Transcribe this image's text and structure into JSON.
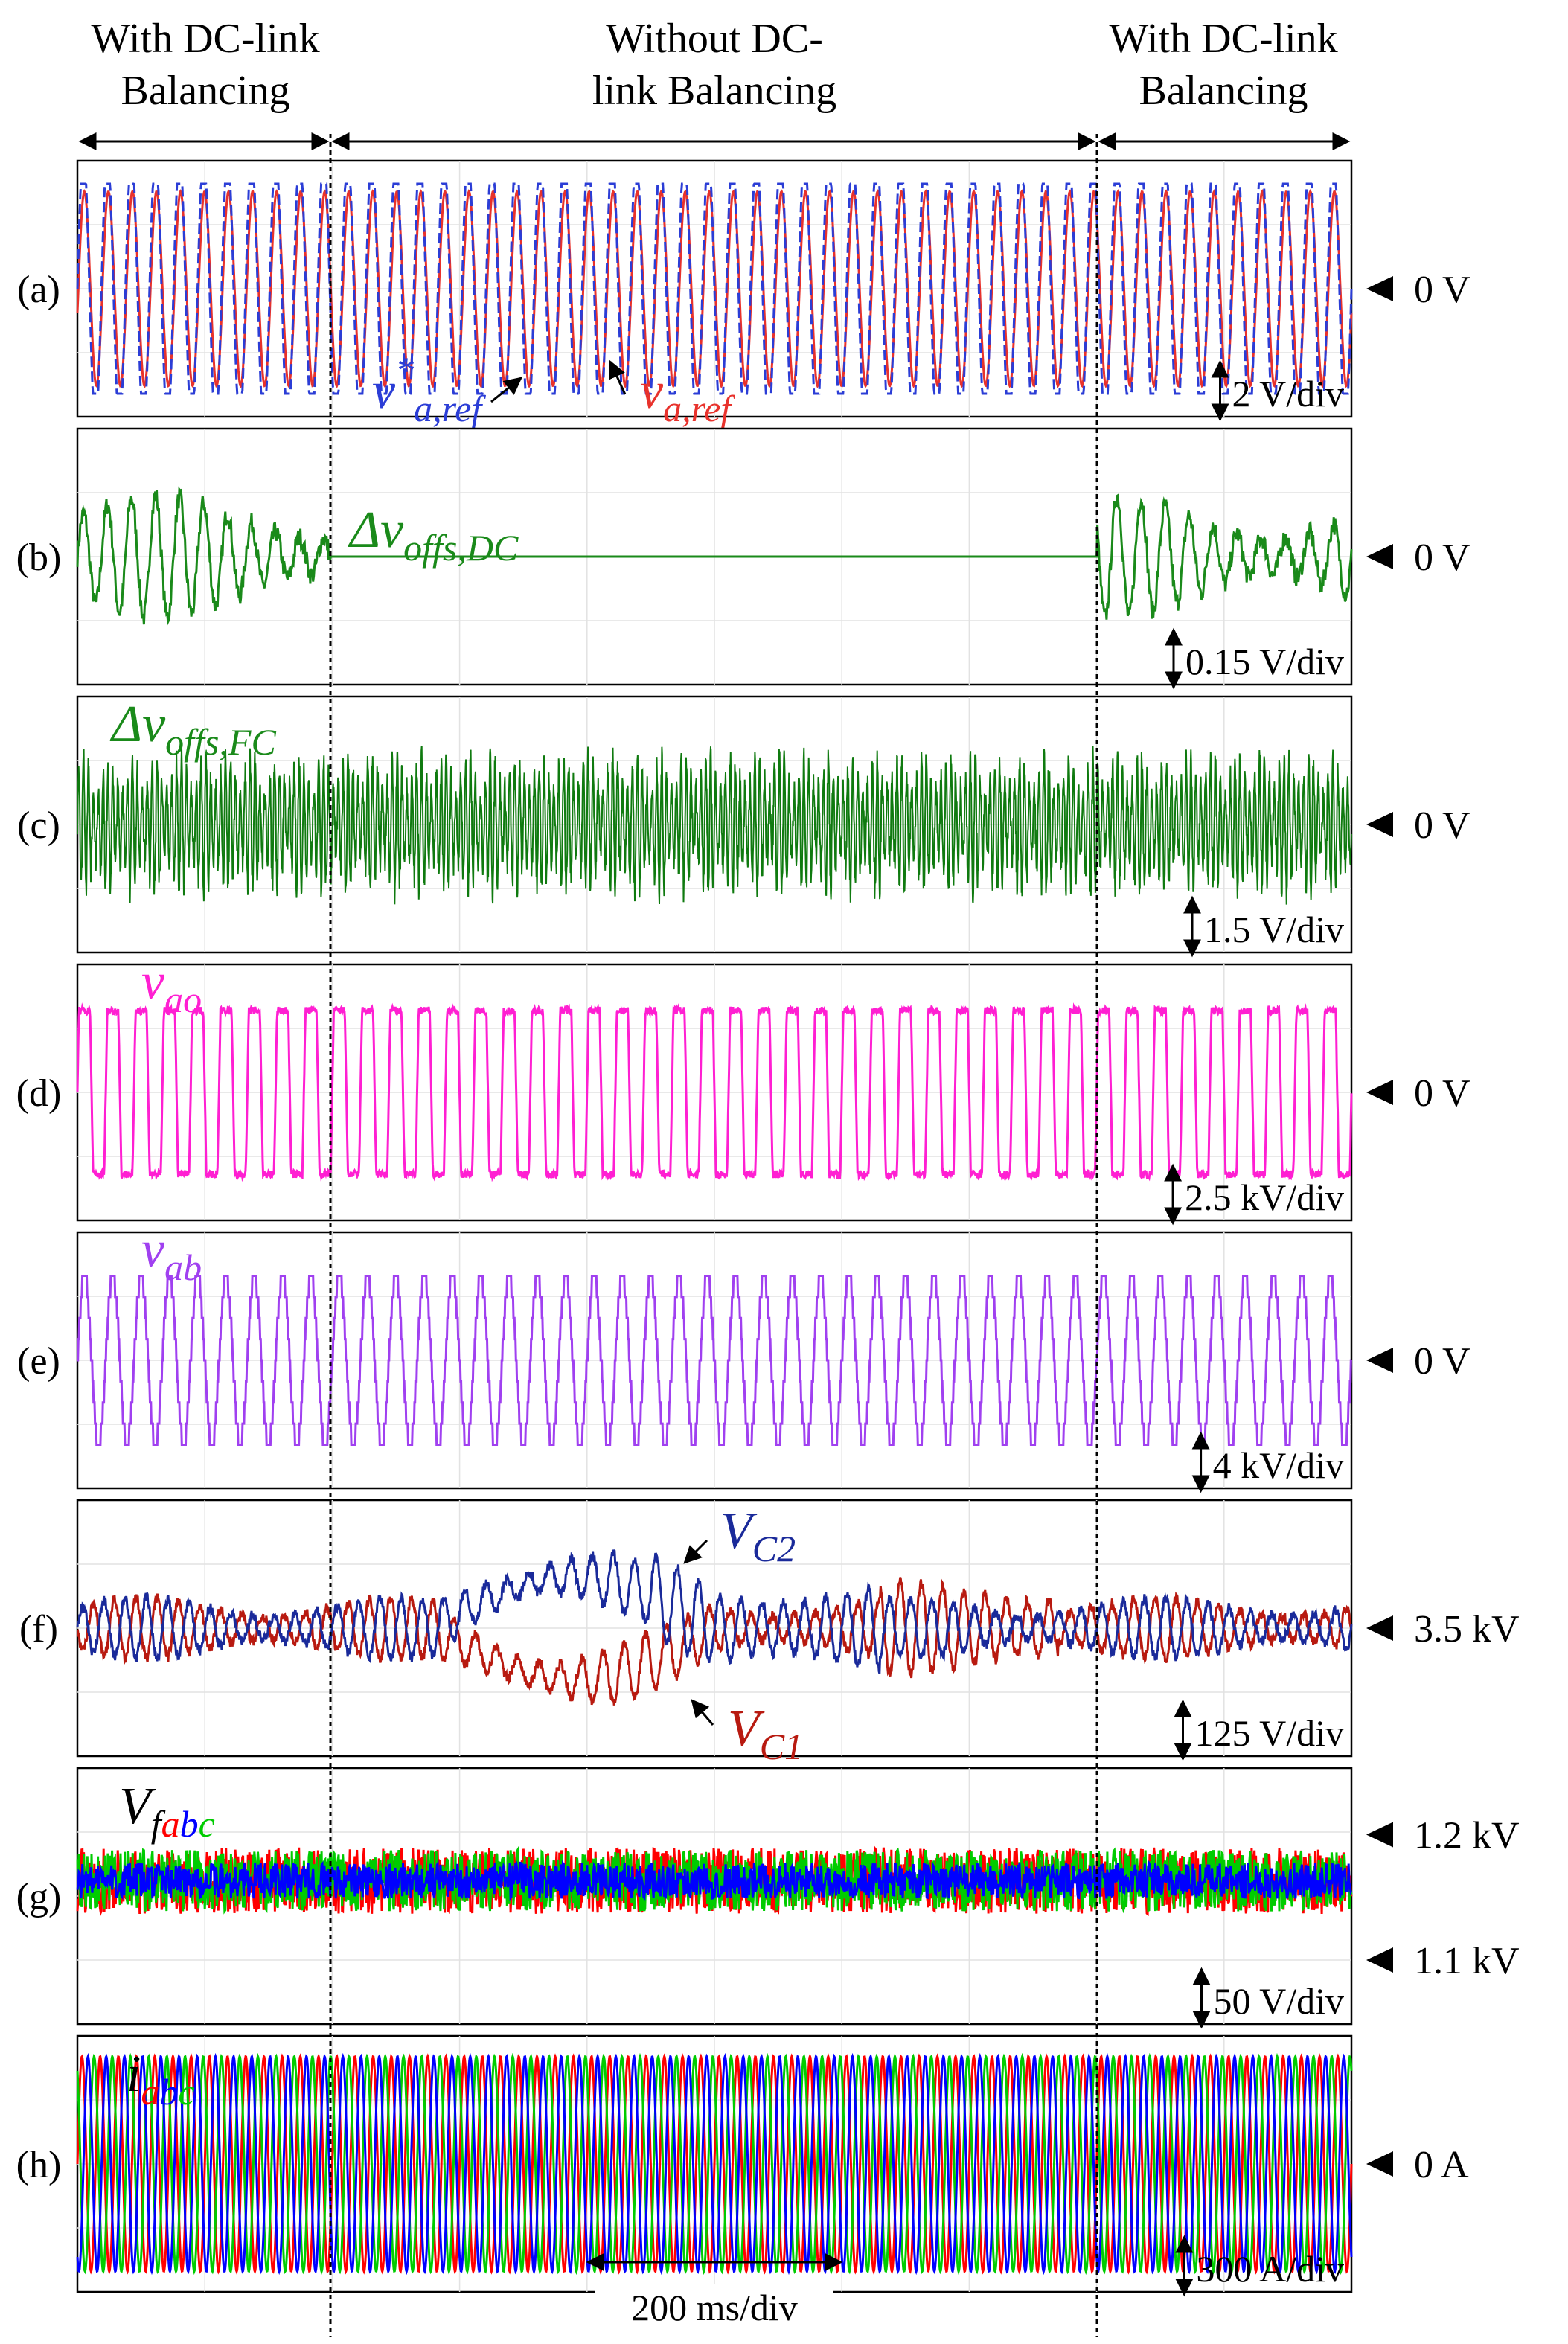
{
  "header": {
    "regions": [
      [
        "With DC-link",
        "Balancing"
      ],
      [
        "Without DC-",
        "link Balancing"
      ],
      [
        "With DC-link",
        "Balancing"
      ]
    ]
  },
  "panels": [
    {
      "label": "(a)",
      "levels": [
        "0 V"
      ],
      "scale": "2 V/div",
      "colors": [
        "#e8322c",
        "#2b3dd6"
      ],
      "signals": [
        [
          {
            "text": "v",
            "pos": "base",
            "color": "#2b3dd6"
          },
          {
            "text": "*",
            "pos": "sup",
            "color": "#2b3dd6"
          },
          {
            "text": "a,ref",
            "pos": "sub",
            "color": "#2b3dd6"
          }
        ],
        [
          {
            "text": "v",
            "pos": "base",
            "color": "#e8322c"
          },
          {
            "text": "a,ref",
            "pos": "sub",
            "color": "#e8322c"
          }
        ]
      ]
    },
    {
      "label": "(b)",
      "levels": [
        "0 V"
      ],
      "scale": "0.15 V/div",
      "colors": [
        "#1a8a1a"
      ],
      "signals": [
        [
          {
            "text": "Δv",
            "pos": "base",
            "color": "#1a8a1a"
          },
          {
            "text": "offs,DC",
            "pos": "sub",
            "color": "#1a8a1a"
          }
        ]
      ]
    },
    {
      "label": "(c)",
      "levels": [
        "0 V"
      ],
      "scale": "1.5 V/div",
      "colors": [
        "#0f7a0f"
      ],
      "signals": [
        [
          {
            "text": "Δv",
            "pos": "base",
            "color": "#1a8a1a"
          },
          {
            "text": "offs,FC",
            "pos": "sub",
            "color": "#1a8a1a"
          }
        ]
      ]
    },
    {
      "label": "(d)",
      "levels": [
        "0 V"
      ],
      "scale": "2.5 kV/div",
      "colors": [
        "#ff1fd2"
      ],
      "signals": [
        [
          {
            "text": "v",
            "pos": "base",
            "color": "#ff1fd2"
          },
          {
            "text": "ao",
            "pos": "sub",
            "color": "#ff1fd2"
          }
        ]
      ]
    },
    {
      "label": "(e)",
      "levels": [
        "0 V"
      ],
      "scale": "4 kV/div",
      "colors": [
        "#a040f0"
      ],
      "signals": [
        [
          {
            "text": "v",
            "pos": "base",
            "color": "#a040f0"
          },
          {
            "text": "ab",
            "pos": "sub",
            "color": "#a040f0"
          }
        ]
      ]
    },
    {
      "label": "(f)",
      "levels": [
        "3.5 kV"
      ],
      "scale": "125 V/div",
      "colors": [
        "#b81a10",
        "#1a2a9a"
      ],
      "signals": [
        [
          {
            "text": "V",
            "pos": "base",
            "color": "#1a2a9a"
          },
          {
            "text": "C2",
            "pos": "sub",
            "color": "#1a2a9a"
          }
        ],
        [
          {
            "text": "V",
            "pos": "base",
            "color": "#b81a10"
          },
          {
            "text": "C1",
            "pos": "sub",
            "color": "#b81a10"
          }
        ]
      ]
    },
    {
      "label": "(g)",
      "levels": [
        "1.2 kV",
        "1.1 kV"
      ],
      "scale": "50 V/div",
      "colors": [
        "#ff0000",
        "#00cc00",
        "#0000ff"
      ],
      "signals": [
        [
          {
            "text": "V",
            "pos": "base",
            "color": "#000000"
          },
          {
            "text": "f",
            "pos": "sub",
            "color": "#000000"
          },
          {
            "text": "a",
            "pos": "sub",
            "color": "#ff0000"
          },
          {
            "text": "b",
            "pos": "sub",
            "color": "#0000ff"
          },
          {
            "text": "c",
            "pos": "sub",
            "color": "#00cc00"
          }
        ]
      ]
    },
    {
      "label": "(h)",
      "levels": [
        "0 A"
      ],
      "scale": "300 A/div",
      "colors": [
        "#ff0000",
        "#00cc00",
        "#0000ff"
      ],
      "signals": [
        [
          {
            "text": "i",
            "pos": "base",
            "color": "#000000"
          },
          {
            "text": "a",
            "pos": "sub",
            "color": "#ff0000"
          },
          {
            "text": "b",
            "pos": "sub",
            "color": "#0000ff"
          },
          {
            "text": "c",
            "pos": "sub",
            "color": "#00cc00"
          }
        ]
      ]
    }
  ],
  "time_scale": "200 ms/div"
}
